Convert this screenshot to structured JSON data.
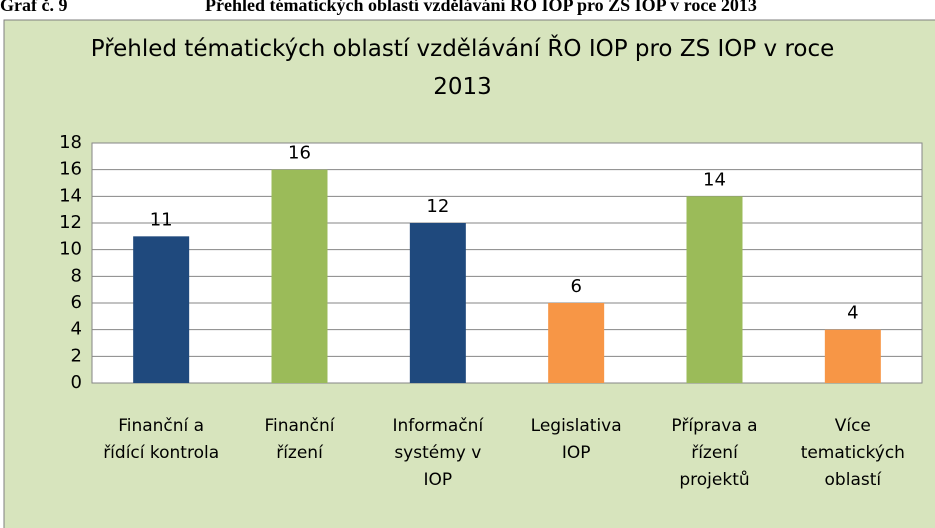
{
  "header": {
    "label": "Graf č. 9",
    "title": "Přehled tématických oblastí vzdělávání ŘO IOP pro ZS IOP v roce 2013"
  },
  "chart_data": {
    "type": "bar",
    "title": "Přehled tématických oblastí vzdělávání ŘO IOP pro ZS IOP v roce 2013",
    "categories": [
      "Finanční a řídící kontrola",
      "Finanční řízení",
      "Informační systémy v IOP",
      "Legislativa IOP",
      "Příprava a řízení projektů",
      "Více tematických oblastí"
    ],
    "values": [
      11,
      16,
      12,
      6,
      14,
      4
    ],
    "colors": [
      "#1f497d",
      "#9bbb59",
      "#1f497d",
      "#f79646",
      "#9bbb59",
      "#f79646"
    ],
    "ylim": [
      0,
      18
    ],
    "yticks": [
      0,
      2,
      4,
      6,
      8,
      10,
      12,
      14,
      16,
      18
    ],
    "grid": true,
    "data_labels": true
  }
}
